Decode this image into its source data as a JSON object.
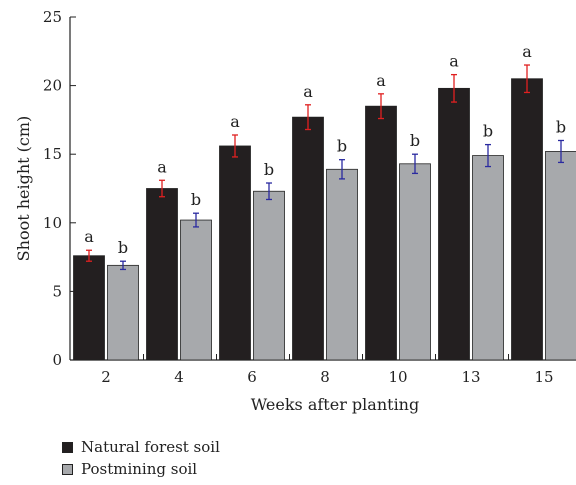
{
  "chart_data": {
    "type": "bar",
    "title": "",
    "xlabel": "Weeks after planting",
    "ylabel": "Shoot height (cm)",
    "ylim": [
      0,
      25
    ],
    "yticks": [
      0,
      5,
      10,
      15,
      20,
      25
    ],
    "categories": [
      "2",
      "4",
      "6",
      "8",
      "10",
      "13",
      "15"
    ],
    "grid": false,
    "legend_position": "bottom-left",
    "series": [
      {
        "name": "Natural forest soil",
        "color": "#231f20",
        "error_color": "#e02020",
        "values": [
          7.6,
          12.5,
          15.6,
          17.7,
          18.5,
          19.8,
          20.5
        ],
        "errors": [
          0.4,
          0.6,
          0.8,
          0.9,
          0.9,
          1.0,
          1.0
        ],
        "labels": [
          "a",
          "a",
          "a",
          "a",
          "a",
          "a",
          "a"
        ]
      },
      {
        "name": "Postmining soil",
        "color": "#a7a9ac",
        "error_color": "#2a2aa0",
        "values": [
          6.9,
          10.2,
          12.3,
          13.9,
          14.3,
          14.9,
          15.2
        ],
        "errors": [
          0.3,
          0.5,
          0.6,
          0.7,
          0.7,
          0.8,
          0.8
        ],
        "labels": [
          "b",
          "b",
          "b",
          "b",
          "b",
          "b",
          "b"
        ]
      }
    ]
  }
}
